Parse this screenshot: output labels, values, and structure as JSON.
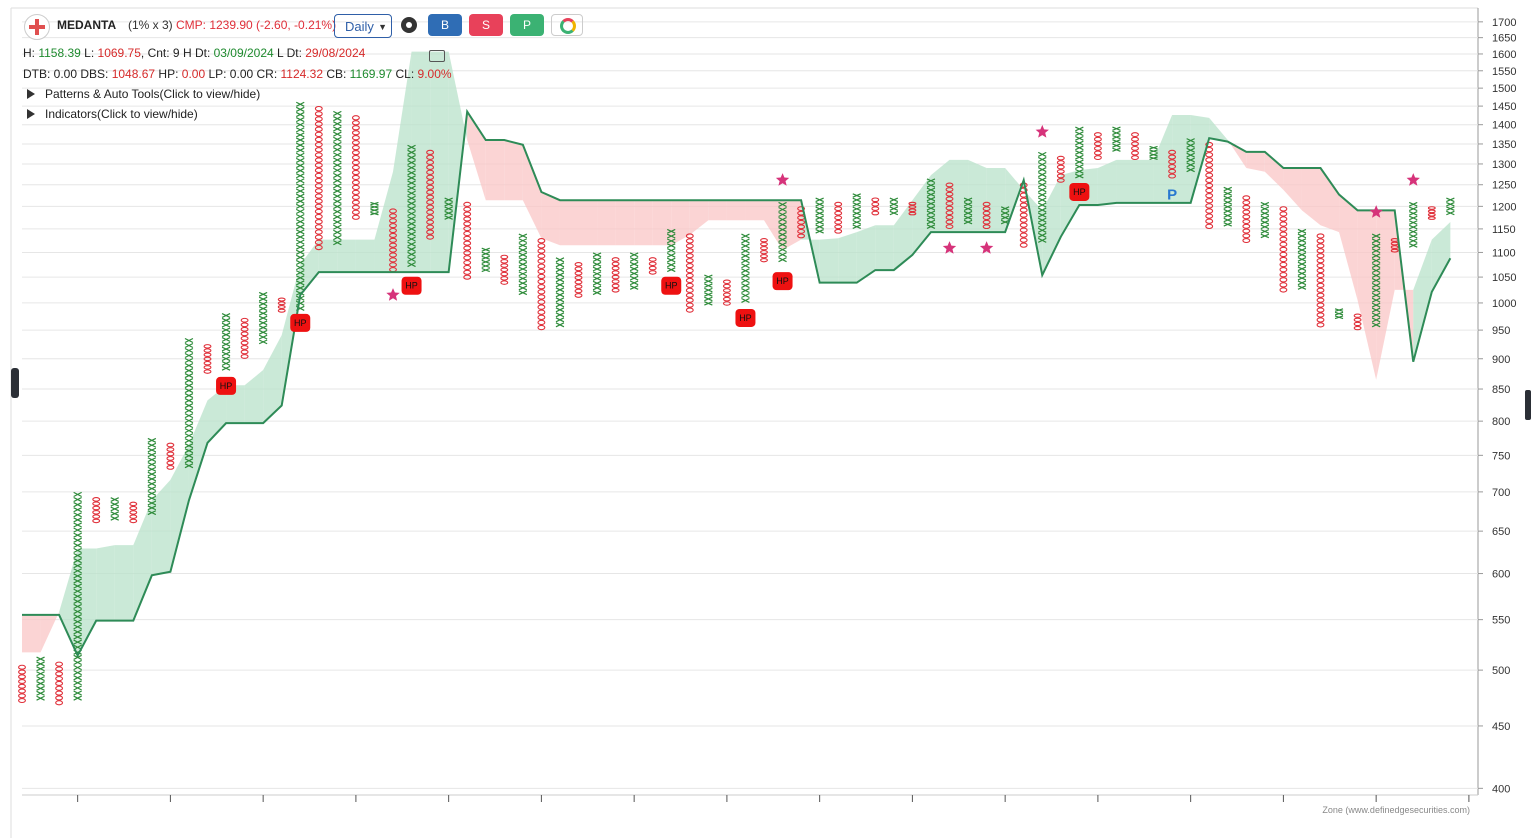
{
  "header": {
    "name": "MEDANTA",
    "params": "(1% x 3)",
    "cmp": "CMP: 1239.90 (-2.60, -0.21%)",
    "timeframe": "Daily",
    "buttons": [
      "B",
      "S",
      "P"
    ],
    "info": [
      [
        {
          "text": "H: ",
          "color": "#222"
        },
        {
          "text": "1158.39",
          "color": "#1e8a2e"
        },
        {
          "text": " L: ",
          "color": "#222"
        },
        {
          "text": "1069.75",
          "color": "#d62a2a"
        },
        {
          "text": ", Cnt: 9 H Dt: ",
          "color": "#222"
        },
        {
          "text": "03/09/2024",
          "color": "#1e8a2e"
        },
        {
          "text": " L Dt: ",
          "color": "#222"
        },
        {
          "text": "29/08/2024",
          "color": "#d62a2a"
        }
      ],
      [
        {
          "text": "DTB: 0.00 DBS: ",
          "color": "#222"
        },
        {
          "text": "1048.67",
          "color": "#d62a2a"
        },
        {
          "text": " HP: ",
          "color": "#222"
        },
        {
          "text": "0.00",
          "color": "#d62a2a"
        },
        {
          "text": " LP: 0.00 CR: ",
          "color": "#222"
        },
        {
          "text": "1124.32",
          "color": "#d62a2a"
        },
        {
          "text": " CB: ",
          "color": "#222"
        },
        {
          "text": "1169.97",
          "color": "#1e8a2e"
        },
        {
          "text": " CL: ",
          "color": "#222"
        },
        {
          "text": "9.00%",
          "color": "#d62a2a"
        }
      ]
    ],
    "toggles": [
      "Patterns & Auto Tools(Click to view/hide)",
      "Indicators(Click to view/hide)"
    ],
    "footer": "Zone (www.definedgesecurities.com)"
  },
  "chart_data": {
    "type": "pnf",
    "log_scale": true,
    "grid": true,
    "ylim": [
      395,
      1745
    ],
    "yticks": [
      400,
      450,
      500,
      550,
      600,
      650,
      700,
      750,
      800,
      850,
      900,
      950,
      1000,
      1050,
      1100,
      1150,
      1200,
      1250,
      1300,
      1350,
      1400,
      1450,
      1500,
      1550,
      1600,
      1650,
      1700
    ],
    "xticks": [
      3,
      8,
      13,
      18,
      23,
      28,
      33,
      38,
      43,
      48,
      53,
      58,
      63,
      68,
      73,
      78
    ],
    "x_color": "#2e8b3a",
    "o_color": "#e0303a",
    "columns": [
      {
        "type": "O",
        "low": 470,
        "high": 505
      },
      {
        "type": "X",
        "low": 472,
        "high": 513
      },
      {
        "type": "O",
        "low": 468,
        "high": 508
      },
      {
        "type": "X",
        "low": 472,
        "high": 700
      },
      {
        "type": "O",
        "low": 660,
        "high": 693
      },
      {
        "type": "X",
        "low": 663,
        "high": 693
      },
      {
        "type": "O",
        "low": 660,
        "high": 687
      },
      {
        "type": "X",
        "low": 670,
        "high": 775
      },
      {
        "type": "O",
        "low": 730,
        "high": 768
      },
      {
        "type": "X",
        "low": 732,
        "high": 936
      },
      {
        "type": "O",
        "low": 875,
        "high": 925
      },
      {
        "type": "X",
        "low": 880,
        "high": 981
      },
      {
        "type": "O",
        "low": 900,
        "high": 972
      },
      {
        "type": "X",
        "low": 925,
        "high": 1021
      },
      {
        "type": "O",
        "low": 982,
        "high": 1010
      },
      {
        "type": "X",
        "low": 985,
        "high": 1462
      },
      {
        "type": "O",
        "low": 1105,
        "high": 1450
      },
      {
        "type": "X",
        "low": 1115,
        "high": 1437
      },
      {
        "type": "O",
        "low": 1170,
        "high": 1425
      },
      {
        "type": "X",
        "low": 1180,
        "high": 1210
      },
      {
        "type": "O",
        "low": 1060,
        "high": 1195
      },
      {
        "type": "X",
        "low": 1070,
        "high": 1348
      },
      {
        "type": "O",
        "low": 1127,
        "high": 1335
      },
      {
        "type": "X",
        "low": 1170,
        "high": 1220
      },
      {
        "type": "O",
        "low": 1045,
        "high": 1210
      },
      {
        "type": "X",
        "low": 1060,
        "high": 1110
      },
      {
        "type": "O",
        "low": 1035,
        "high": 1095
      },
      {
        "type": "X",
        "low": 1015,
        "high": 1140
      },
      {
        "type": "O",
        "low": 950,
        "high": 1130
      },
      {
        "type": "X",
        "low": 955,
        "high": 1090
      },
      {
        "type": "O",
        "low": 1010,
        "high": 1080
      },
      {
        "type": "X",
        "low": 1015,
        "high": 1100
      },
      {
        "type": "O",
        "low": 1020,
        "high": 1090
      },
      {
        "type": "X",
        "low": 1025,
        "high": 1100
      },
      {
        "type": "O",
        "low": 1055,
        "high": 1090
      },
      {
        "type": "X",
        "low": 1060,
        "high": 1150
      },
      {
        "type": "O",
        "low": 982,
        "high": 1140
      },
      {
        "type": "X",
        "low": 995,
        "high": 1055
      },
      {
        "type": "O",
        "low": 995,
        "high": 1045
      },
      {
        "type": "X",
        "low": 1000,
        "high": 1140
      },
      {
        "type": "O",
        "low": 1080,
        "high": 1130
      },
      {
        "type": "X",
        "low": 1080,
        "high": 1210
      },
      {
        "type": "O",
        "low": 1130,
        "high": 1200
      },
      {
        "type": "X",
        "low": 1140,
        "high": 1220
      },
      {
        "type": "O",
        "low": 1140,
        "high": 1210
      },
      {
        "type": "X",
        "low": 1150,
        "high": 1230
      },
      {
        "type": "O",
        "low": 1180,
        "high": 1220
      },
      {
        "type": "X",
        "low": 1180,
        "high": 1220
      },
      {
        "type": "O",
        "low": 1180,
        "high": 1210
      },
      {
        "type": "X",
        "low": 1150,
        "high": 1265
      },
      {
        "type": "O",
        "low": 1150,
        "high": 1255
      },
      {
        "type": "X",
        "low": 1160,
        "high": 1220
      },
      {
        "type": "O",
        "low": 1150,
        "high": 1210
      },
      {
        "type": "X",
        "low": 1160,
        "high": 1200
      },
      {
        "type": "O",
        "low": 1110,
        "high": 1255
      },
      {
        "type": "X",
        "low": 1120,
        "high": 1330
      },
      {
        "type": "O",
        "low": 1255,
        "high": 1320
      },
      {
        "type": "X",
        "low": 1265,
        "high": 1395
      },
      {
        "type": "O",
        "low": 1310,
        "high": 1380
      },
      {
        "type": "X",
        "low": 1330,
        "high": 1395
      },
      {
        "type": "O",
        "low": 1310,
        "high": 1380
      },
      {
        "type": "X",
        "low": 1310,
        "high": 1345
      },
      {
        "type": "O",
        "low": 1265,
        "high": 1335
      },
      {
        "type": "X",
        "low": 1280,
        "high": 1365
      },
      {
        "type": "O",
        "low": 1150,
        "high": 1355
      },
      {
        "type": "X",
        "low": 1155,
        "high": 1245
      },
      {
        "type": "O",
        "low": 1120,
        "high": 1225
      },
      {
        "type": "X",
        "low": 1130,
        "high": 1210
      },
      {
        "type": "O",
        "low": 1020,
        "high": 1200
      },
      {
        "type": "X",
        "low": 1025,
        "high": 1150
      },
      {
        "type": "O",
        "low": 955,
        "high": 1140
      },
      {
        "type": "X",
        "low": 970,
        "high": 990
      },
      {
        "type": "O",
        "low": 950,
        "high": 980
      },
      {
        "type": "X",
        "low": 955,
        "high": 1140
      },
      {
        "type": "O",
        "low": 1100,
        "high": 1130
      },
      {
        "type": "X",
        "low": 1110,
        "high": 1210
      },
      {
        "type": "O",
        "low": 1170,
        "high": 1200
      },
      {
        "type": "X",
        "low": 1180,
        "high": 1220
      }
    ],
    "trend_line": {
      "color": "#2e8b57",
      "values": [
        555,
        555,
        555,
        514,
        549,
        549,
        549,
        598,
        602,
        689,
        768,
        797,
        797,
        797,
        824,
        1015,
        1060,
        1060,
        1060,
        1060,
        1060,
        1060,
        1060,
        1060,
        1435,
        1360,
        1360,
        1348,
        1233,
        1214,
        1214,
        1214,
        1214,
        1214,
        1214,
        1214,
        1214,
        1214,
        1214,
        1214,
        1214,
        1214,
        1214,
        1039,
        1039,
        1039,
        1064,
        1064,
        1095,
        1143,
        1143,
        1143,
        1143,
        1143,
        1261,
        1054,
        1133,
        1203,
        1203,
        1208,
        1208,
        1208,
        1208,
        1208,
        1365,
        1356,
        1330,
        1330,
        1290,
        1290,
        1290,
        1227,
        1191,
        1191,
        1191,
        895,
        1021,
        1088
      ]
    },
    "cloud": {
      "up_color": "#b8e2ca",
      "down_color": "#f9c6c6",
      "values": [
        517,
        517,
        558,
        629,
        629,
        633,
        633,
        689,
        716,
        765,
        832,
        856,
        856,
        881,
        941,
        1075,
        1127,
        1127,
        1127,
        1127,
        1281,
        1607,
        1607,
        1607,
        1360,
        1214,
        1214,
        1214,
        1130,
        1115,
        1115,
        1115,
        1115,
        1115,
        1115,
        1115,
        1137,
        1169,
        1169,
        1169,
        1169,
        1105,
        1127,
        1127,
        1130,
        1143,
        1158,
        1158,
        1214,
        1273,
        1310,
        1310,
        1290,
        1290,
        1238,
        1191,
        1273,
        1285,
        1290,
        1310,
        1310,
        1310,
        1426,
        1426,
        1418,
        1360,
        1290,
        1281,
        1238,
        1191,
        1158,
        1143,
        1005,
        865,
        1025,
        1025,
        1127,
        1165
      ]
    },
    "hp_markers": [
      {
        "col": 11,
        "value": 855,
        "label": "HP"
      },
      {
        "col": 15,
        "value": 963,
        "label": "HP"
      },
      {
        "col": 21,
        "value": 1033,
        "label": "HP"
      },
      {
        "col": 35,
        "value": 1033,
        "label": "HP"
      },
      {
        "col": 39,
        "value": 972,
        "label": "HP"
      },
      {
        "col": 41,
        "value": 1042,
        "label": "HP"
      },
      {
        "col": 57,
        "value": 1233,
        "label": "HP"
      }
    ],
    "stars": {
      "color": "#d6337a",
      "points": [
        {
          "col": 20,
          "value": 1015
        },
        {
          "col": 41,
          "value": 1261
        },
        {
          "col": 50,
          "value": 1109
        },
        {
          "col": 52,
          "value": 1109
        },
        {
          "col": 55,
          "value": 1381
        },
        {
          "col": 73,
          "value": 1187
        },
        {
          "col": 75,
          "value": 1261
        }
      ]
    },
    "p_marker": {
      "col": 62,
      "value": 1227,
      "label": "P",
      "color": "#2878d0"
    }
  }
}
